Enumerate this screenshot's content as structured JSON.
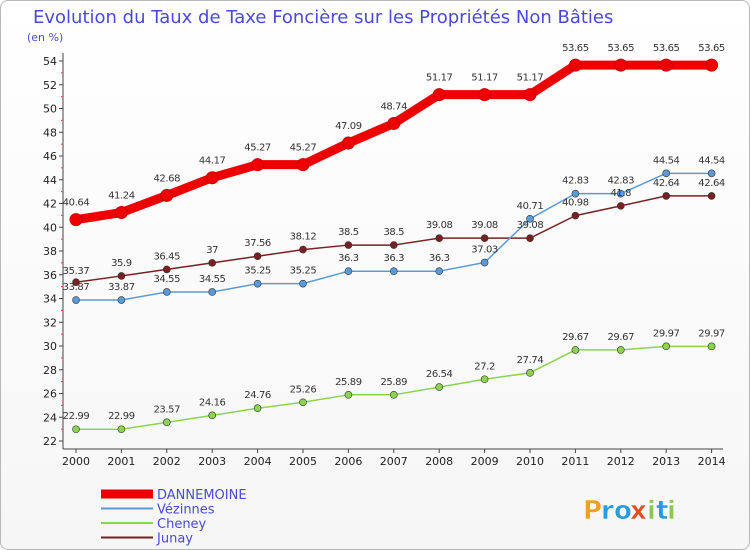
{
  "chart_data": {
    "type": "line",
    "title": "Evolution du Taux de Taxe Foncière sur les Propriétés Non Bâties",
    "subtitle": "(en %)",
    "x": [
      "2000",
      "2001",
      "2002",
      "2003",
      "2004",
      "2005",
      "2006",
      "2007",
      "2008",
      "2009",
      "2010",
      "2011",
      "2012",
      "2013",
      "2014"
    ],
    "ylim": [
      22,
      54
    ],
    "yticks": [
      22,
      24,
      26,
      28,
      30,
      32,
      34,
      36,
      38,
      40,
      42,
      44,
      46,
      48,
      50,
      52,
      54
    ],
    "grid": false,
    "legend_position": "bottom-left",
    "series": [
      {
        "name": "DANNEMOINE",
        "color": "#ee0000",
        "values": [
          40.64,
          41.24,
          42.68,
          44.17,
          45.27,
          45.27,
          47.09,
          48.74,
          51.17,
          51.17,
          51.17,
          53.65,
          53.65,
          53.65,
          53.65
        ],
        "labels": [
          "40.64",
          "41.24",
          "42.68",
          "44.17",
          "45.27",
          "45.27",
          "47.09",
          "48.74",
          "51.17",
          "51.17",
          "51.17",
          "53.65",
          "53.65",
          "53.65",
          "53.65"
        ]
      },
      {
        "name": "Vézinnes",
        "color": "#5a9ad6",
        "values": [
          33.87,
          33.87,
          34.55,
          34.55,
          35.25,
          35.25,
          36.3,
          36.3,
          36.3,
          37.03,
          40.71,
          42.83,
          42.83,
          44.54,
          44.54
        ],
        "labels": [
          "33.87",
          "33.87",
          "34.55",
          "34.55",
          "35.25",
          "35.25",
          "36.3",
          "36.3",
          "36.3",
          "37.03",
          "40.71",
          "42.83",
          "42.83",
          "44.54",
          "44.54"
        ]
      },
      {
        "name": "Cheney",
        "color": "#8cd450",
        "values": [
          22.99,
          22.99,
          23.57,
          24.16,
          24.76,
          25.26,
          25.89,
          25.89,
          26.54,
          27.2,
          27.74,
          29.67,
          29.67,
          29.97,
          29.97
        ],
        "labels": [
          "22.99",
          "22.99",
          "23.57",
          "24.16",
          "24.76",
          "25.26",
          "25.89",
          "25.89",
          "26.54",
          "27.2",
          "27.74",
          "29.67",
          "29.67",
          "29.97",
          "29.97"
        ]
      },
      {
        "name": "Junay",
        "color": "#7a2020",
        "values": [
          35.37,
          35.9,
          36.45,
          37,
          37.56,
          38.12,
          38.5,
          38.5,
          39.08,
          39.08,
          39.08,
          40.98,
          41.8,
          42.64,
          42.64
        ],
        "labels": [
          "35.37",
          "35.9",
          "36.45",
          "37",
          "37.56",
          "38.12",
          "38.5",
          "38.5",
          "39.08",
          "39.08",
          "39.08",
          "40.98",
          "41.8",
          "42.64",
          "42.64"
        ]
      }
    ]
  },
  "logo": {
    "text": "Proxiti",
    "letters": [
      "P",
      "r",
      "o",
      "x",
      "i",
      "t",
      "i"
    ]
  },
  "colors": {
    "title": "#4a4ad8",
    "logo_letters": [
      "#f0a020",
      "#2a9adf",
      "#2a9adf",
      "#e05020",
      "#8cc850",
      "#2a9adf",
      "#8cc850"
    ]
  }
}
